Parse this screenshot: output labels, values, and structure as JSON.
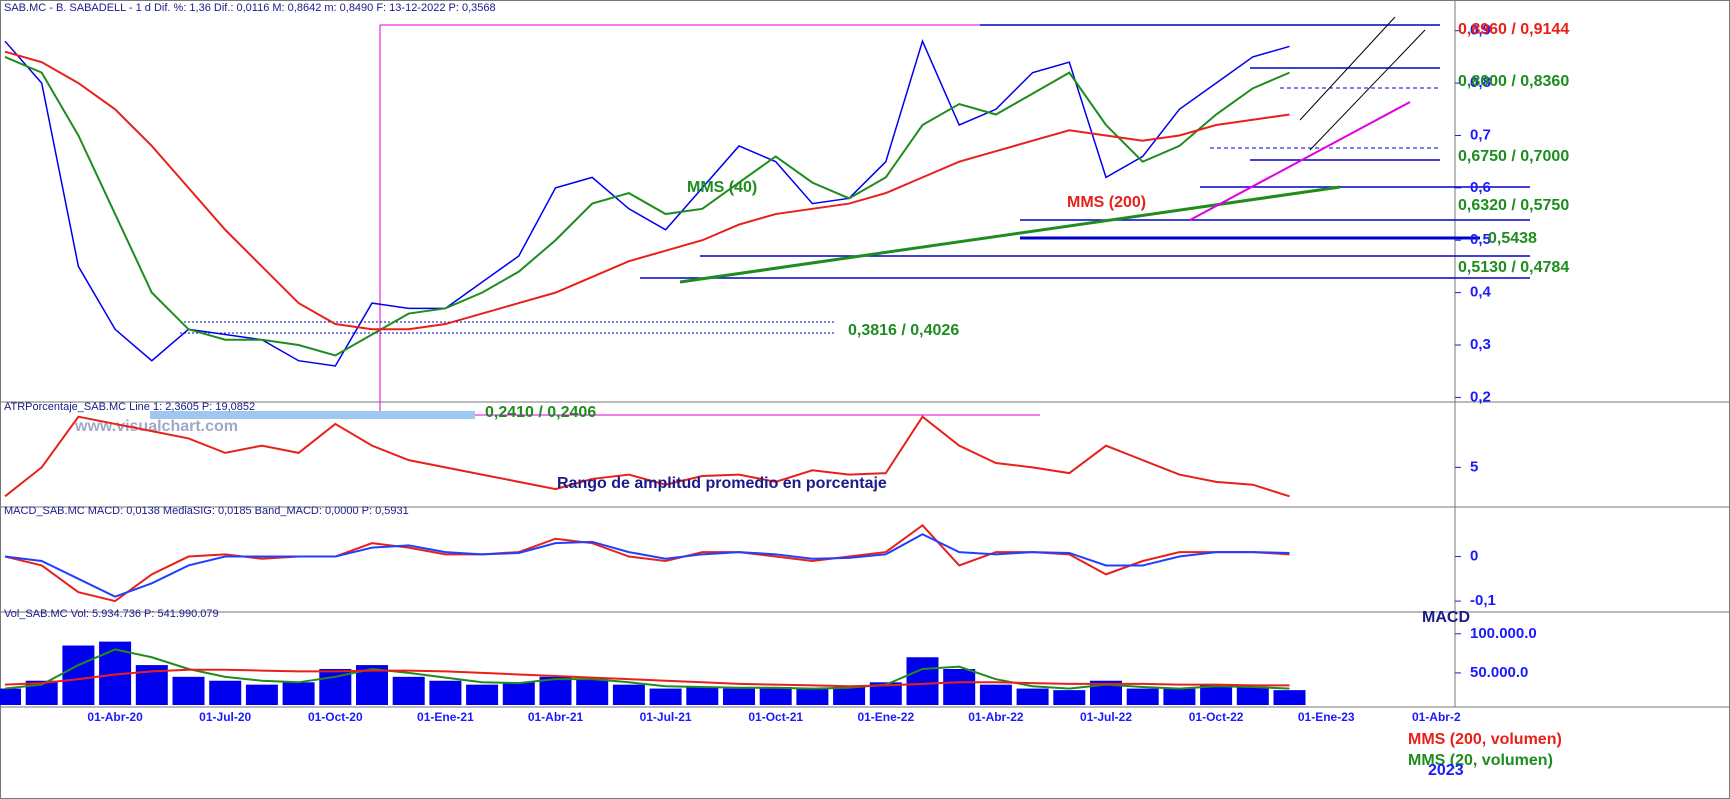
{
  "chart_data": [
    {
      "type": "line",
      "title": "SAB.MC - B. SABADELL - 1 d Dif. %: 1,36 Dif.: 0,0116 M: 0,8642 m: 0,8490 F: 13-12-2022 P: 0,3568",
      "ylim": [
        0.195,
        0.93
      ],
      "yticks": [
        {
          "value": 0.2,
          "label": "0,2"
        },
        {
          "value": 0.3,
          "label": "0,3"
        },
        {
          "value": 0.4,
          "label": "0,4"
        },
        {
          "value": 0.5,
          "label": "0,5"
        },
        {
          "value": 0.6,
          "label": "0,6"
        },
        {
          "value": 0.7,
          "label": "0,7"
        },
        {
          "value": 0.8,
          "label": "0,8"
        },
        {
          "value": 0.9,
          "label": "0,9"
        }
      ],
      "annotations": [
        "0,8960 / 0,9144",
        "0,8000 / 0,8360",
        "0,6750 / 0,7000",
        "0,6320 / 0,5750",
        "0,5438",
        "0,5130 / 0,4784",
        "0,3816 / 0,4026",
        "0,2410 / 0,2406",
        "MMS (40)",
        "MMS (200)",
        "www.visualchart.com"
      ],
      "series": [
        {
          "name": "SAB.MC",
          "color": "#0000ee",
          "values": [
            0.88,
            0.8,
            0.45,
            0.33,
            0.27,
            0.33,
            0.32,
            0.31,
            0.27,
            0.26,
            0.38,
            0.37,
            0.37,
            0.42,
            0.47,
            0.6,
            0.62,
            0.56,
            0.52,
            0.6,
            0.68,
            0.65,
            0.57,
            0.58,
            0.65,
            0.88,
            0.72,
            0.75,
            0.82,
            0.84,
            0.62,
            0.66,
            0.75,
            0.8,
            0.85,
            0.87
          ]
        },
        {
          "name": "MMS (40)",
          "color": "#1e8c1e",
          "values": [
            0.85,
            0.82,
            0.7,
            0.55,
            0.4,
            0.33,
            0.31,
            0.31,
            0.3,
            0.28,
            0.32,
            0.36,
            0.37,
            0.4,
            0.44,
            0.5,
            0.57,
            0.59,
            0.55,
            0.56,
            0.61,
            0.66,
            0.61,
            0.58,
            0.62,
            0.72,
            0.76,
            0.74,
            0.78,
            0.82,
            0.72,
            0.65,
            0.68,
            0.74,
            0.79,
            0.82
          ]
        },
        {
          "name": "MMS (200)",
          "color": "#e8201a",
          "values": [
            0.86,
            0.84,
            0.8,
            0.75,
            0.68,
            0.6,
            0.52,
            0.45,
            0.38,
            0.34,
            0.33,
            0.33,
            0.34,
            0.36,
            0.38,
            0.4,
            0.43,
            0.46,
            0.48,
            0.5,
            0.53,
            0.55,
            0.56,
            0.57,
            0.59,
            0.62,
            0.65,
            0.67,
            0.69,
            0.71,
            0.7,
            0.69,
            0.7,
            0.72,
            0.73,
            0.74
          ]
        }
      ]
    },
    {
      "type": "line",
      "title": "ATRPorcentaje_SAB.MC Line 1: 2,3605 P: 19,0852",
      "ylim": [
        2.4,
        9.1
      ],
      "yticks": [
        5
      ],
      "annotations": [
        "Rango de amplitud promedio en porcentaje"
      ],
      "series": [
        {
          "name": "ATRPorcentaje",
          "color": "#e8201a",
          "values": [
            3,
            5,
            8.5,
            8,
            7.5,
            7,
            6,
            6.5,
            6,
            8,
            6.5,
            5.5,
            5,
            4.5,
            4,
            3.5,
            4.2,
            4.5,
            3.8,
            4.4,
            4.5,
            4,
            4.8,
            4.5,
            4.6,
            8.5,
            6.5,
            5.3,
            5,
            4.6,
            6.5,
            5.5,
            4.5,
            4,
            3.8,
            3
          ]
        }
      ]
    },
    {
      "type": "line",
      "title": "MACD_SAB.MC MACD: 0,0138 MediaSIG: 0,0185 Band_MACD: 0,0000 P: 0,5931",
      "ylim": [
        -0.12,
        0.1
      ],
      "yticks": [
        {
          "value": -0.1,
          "label": "-0,1"
        },
        0
      ],
      "annotations": [
        "MACD"
      ],
      "series": [
        {
          "name": "MACD",
          "color": "#e8201a",
          "values": [
            0,
            -0.02,
            -0.08,
            -0.1,
            -0.04,
            0,
            0.005,
            -0.005,
            0,
            0,
            0.03,
            0.02,
            0.005,
            0.005,
            0.01,
            0.04,
            0.03,
            0,
            -0.01,
            0.01,
            0.01,
            0,
            -0.01,
            0,
            0.01,
            0.07,
            -0.02,
            0.01,
            0.01,
            0.005,
            -0.04,
            -0.01,
            0.01,
            0.01,
            0.01,
            0.005
          ]
        },
        {
          "name": "MediaSIG",
          "color": "#2040ff",
          "values": [
            0,
            -0.01,
            -0.05,
            -0.09,
            -0.06,
            -0.02,
            0,
            0,
            0,
            0,
            0.02,
            0.025,
            0.01,
            0.005,
            0.008,
            0.03,
            0.033,
            0.01,
            -0.005,
            0.005,
            0.01,
            0.005,
            -0.005,
            -0.003,
            0.005,
            0.05,
            0.01,
            0.005,
            0.01,
            0.008,
            -0.02,
            -0.02,
            0,
            0.01,
            0.01,
            0.008
          ]
        }
      ]
    },
    {
      "type": "bar",
      "title": "Vol_SAB.MC Vol: 5.934.736 P: 541.990.079",
      "categories": [
        null,
        null,
        null,
        "01-Abr-20",
        null,
        null,
        "01-Jul-20",
        null,
        null,
        "01-Oct-20",
        null,
        null,
        "01-Ene-21",
        null,
        null,
        "01-Abr-21",
        null,
        null,
        "01-Jul-21",
        null,
        null,
        "01-Oct-21",
        null,
        null,
        "01-Ene-22",
        null,
        null,
        "01-Abr-22",
        null,
        null,
        "01-Jul-22",
        null,
        null,
        "01-Oct-22",
        null,
        null,
        "01-Ene-23",
        null,
        null,
        "01-Abr-2"
      ],
      "ylim": [
        9000000,
        124000000
      ],
      "yticks": [
        {
          "value": 50000000,
          "label": "50.000.0"
        },
        {
          "value": 100000000,
          "label": "100.000.0"
        }
      ],
      "annotations": [
        "MMS (200, volumen)",
        "MMS (20, volumen)",
        "2023"
      ],
      "series": [
        {
          "name": "Vol",
          "color": "#0000ee",
          "values": [
            30000000,
            40000000,
            85000000,
            90000000,
            60000000,
            45000000,
            40000000,
            35000000,
            38000000,
            55000000,
            60000000,
            45000000,
            40000000,
            35000000,
            38000000,
            45000000,
            42000000,
            35000000,
            30000000,
            32000000,
            30000000,
            32000000,
            30000000,
            32000000,
            38000000,
            70000000,
            55000000,
            35000000,
            30000000,
            28000000,
            40000000,
            30000000,
            30000000,
            35000000,
            32000000,
            28000000,
            null,
            null,
            null,
            null
          ]
        },
        {
          "name": "MMS (20, volumen)",
          "color": "#1e8c1e",
          "values": [
            30000000,
            35000000,
            60000000,
            80000000,
            70000000,
            55000000,
            45000000,
            40000000,
            38000000,
            45000000,
            55000000,
            50000000,
            44000000,
            38000000,
            37000000,
            42000000,
            42000000,
            38000000,
            33000000,
            32000000,
            31000000,
            31000000,
            30000000,
            31000000,
            35000000,
            55000000,
            58000000,
            42000000,
            33000000,
            30000000,
            35000000,
            32000000,
            30000000,
            33000000,
            32000000,
            30000000,
            null,
            null,
            null,
            null
          ]
        },
        {
          "name": "MMS (200, volumen)",
          "color": "#e8201a",
          "values": [
            35000000,
            37000000,
            42000000,
            48000000,
            52000000,
            54000000,
            54000000,
            53000000,
            52000000,
            52000000,
            53000000,
            53000000,
            52000000,
            50000000,
            48000000,
            46000000,
            44000000,
            42000000,
            40000000,
            38000000,
            36000000,
            35000000,
            34000000,
            33000000,
            34000000,
            36000000,
            38000000,
            38000000,
            37000000,
            36000000,
            36000000,
            36000000,
            35000000,
            35000000,
            34000000,
            34000000,
            null,
            null,
            null,
            null
          ]
        }
      ]
    }
  ]
}
